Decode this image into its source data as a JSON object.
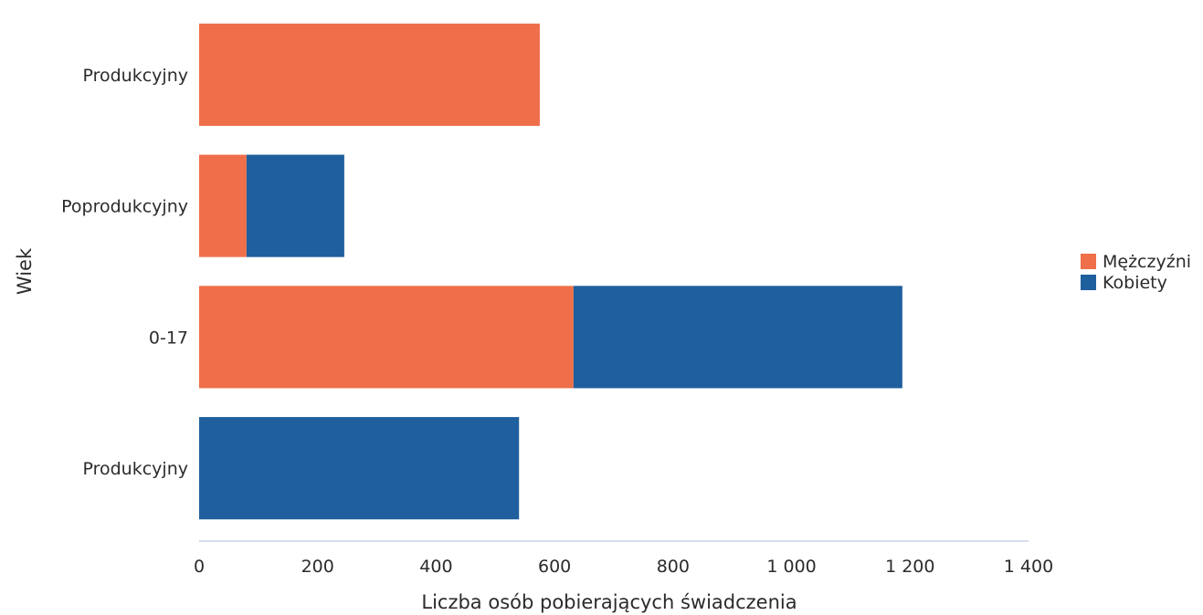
{
  "chart_data": {
    "type": "bar",
    "orientation": "horizontal",
    "stacked": true,
    "categories": [
      "Produkcyjny",
      "Poprodukcyjny",
      "0-17",
      "Produkcyjny"
    ],
    "series": [
      {
        "name": "Mężczyźni",
        "color": "#ee6f4a",
        "values": [
          575,
          80,
          632,
          0
        ]
      },
      {
        "name": "Kobiety",
        "color": "#1f5f9d",
        "values": [
          0,
          165,
          555,
          540
        ]
      }
    ],
    "xlabel": "Liczba osób pobierających świadczenia",
    "ylabel": "Wiek",
    "xlim": [
      0,
      1400
    ],
    "xticks": [
      0,
      200,
      400,
      600,
      800,
      1000,
      1200,
      1400
    ],
    "xtick_labels": [
      "0",
      "200",
      "400",
      "600",
      "800",
      "1 000",
      "1 200",
      "1 400"
    ],
    "grid": false,
    "legend_position": "right"
  }
}
